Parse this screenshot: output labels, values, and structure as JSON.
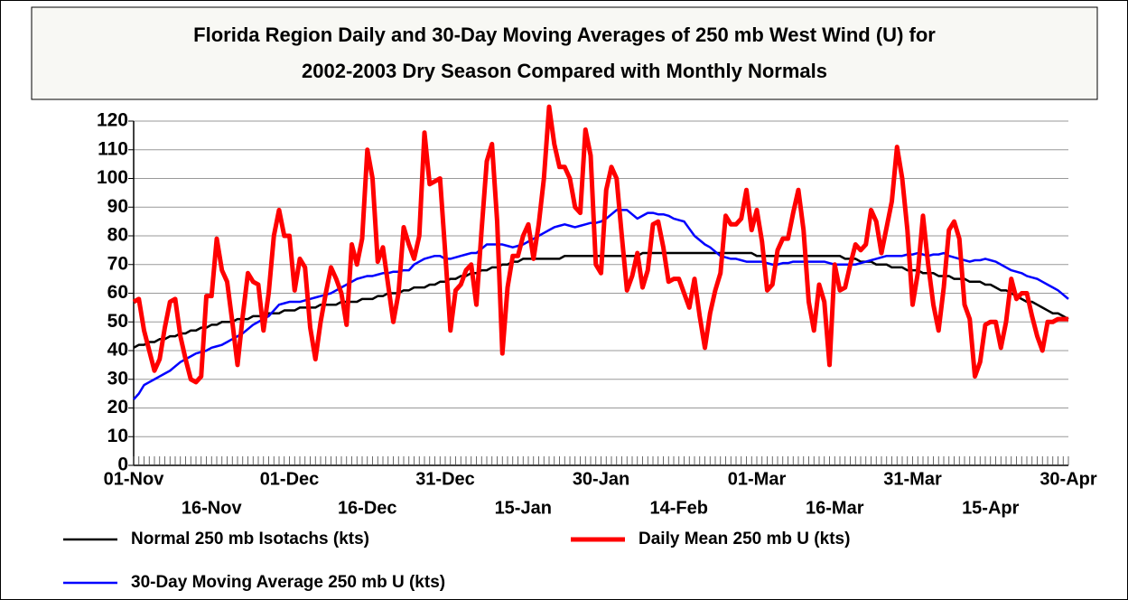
{
  "chart_data": {
    "type": "line",
    "title": "Florida Region Daily and 30-Day Moving Averages of 250 mb West Wind (U)  for 2002-2003 Dry Season Compared with Monthly Normals",
    "title_lines": [
      "Florida Region Daily and 30-Day Moving Averages of 250 mb West Wind (U)  for",
      "2002-2003 Dry Season Compared with Monthly Normals"
    ],
    "categories": [
      "01-Nov",
      null,
      null,
      null,
      null,
      null,
      null,
      null,
      null,
      null,
      null,
      null,
      null,
      null,
      null,
      "16-Nov",
      null,
      null,
      null,
      null,
      null,
      null,
      null,
      null,
      null,
      null,
      null,
      null,
      null,
      null,
      "01-Dec",
      null,
      null,
      null,
      null,
      null,
      null,
      null,
      null,
      null,
      null,
      null,
      null,
      null,
      null,
      "16-Dec",
      null,
      null,
      null,
      null,
      null,
      null,
      null,
      null,
      null,
      null,
      null,
      null,
      null,
      null,
      "31-Dec",
      null,
      null,
      null,
      null,
      null,
      null,
      null,
      null,
      null,
      null,
      null,
      null,
      null,
      null,
      "15-Jan",
      null,
      null,
      null,
      null,
      null,
      null,
      null,
      null,
      null,
      null,
      null,
      null,
      null,
      null,
      "30-Jan",
      null,
      null,
      null,
      null,
      null,
      null,
      null,
      null,
      null,
      null,
      null,
      null,
      null,
      null,
      "14-Feb",
      null,
      null,
      null,
      null,
      null,
      null,
      null,
      null,
      null,
      null,
      null,
      null,
      null,
      null,
      "01-Mar",
      null,
      null,
      null,
      null,
      null,
      null,
      null,
      null,
      null,
      null,
      null,
      null,
      null,
      null,
      "16-Mar",
      null,
      null,
      null,
      null,
      null,
      null,
      null,
      null,
      null,
      null,
      null,
      null,
      null,
      null,
      "31-Mar",
      null,
      null,
      null,
      null,
      null,
      null,
      null,
      null,
      null,
      null,
      null,
      null,
      null,
      null,
      "15-Apr",
      null,
      null,
      null,
      null,
      null,
      null,
      null,
      null,
      null,
      null,
      null,
      null,
      null,
      null,
      "30-Apr"
    ],
    "series": [
      {
        "name": "Normal 250 mb Isotachs (kts)",
        "color": "#000000",
        "values": [
          41,
          42,
          42,
          43,
          43,
          44,
          44,
          45,
          45,
          46,
          46,
          47,
          47,
          48,
          48,
          49,
          49,
          50,
          50,
          50,
          51,
          51,
          51,
          52,
          52,
          52,
          53,
          53,
          53,
          54,
          54,
          54,
          55,
          55,
          55,
          55,
          56,
          56,
          56,
          56,
          57,
          57,
          57,
          57,
          58,
          58,
          58,
          59,
          59,
          60,
          60,
          60,
          61,
          61,
          62,
          62,
          62,
          63,
          63,
          64,
          64,
          65,
          65,
          66,
          66,
          67,
          67,
          68,
          68,
          69,
          69,
          70,
          70,
          71,
          71,
          72,
          72,
          72,
          72,
          72,
          72,
          72,
          72,
          73,
          73,
          73,
          73,
          73,
          73,
          73,
          73,
          73,
          73,
          73,
          73,
          73,
          73,
          73,
          74,
          74,
          74,
          74,
          74,
          74,
          74,
          74,
          74,
          74,
          74,
          74,
          74,
          74,
          74,
          74,
          74,
          74,
          74,
          74,
          74,
          74,
          73,
          73,
          73,
          73,
          73,
          73,
          73,
          73,
          73,
          73,
          73,
          73,
          73,
          73,
          73,
          73,
          73,
          72,
          72,
          72,
          71,
          71,
          71,
          70,
          70,
          70,
          69,
          69,
          69,
          68,
          68,
          68,
          67,
          67,
          67,
          66,
          66,
          66,
          65,
          65,
          65,
          64,
          64,
          64,
          63,
          63,
          62,
          61,
          61,
          60,
          59,
          58,
          57,
          57,
          56,
          55,
          54,
          53,
          53,
          52,
          51
        ]
      },
      {
        "name": "Daily Mean 250 mb U (kts)",
        "color": "#ff0000",
        "values": [
          57,
          58,
          47,
          40,
          33,
          37,
          48,
          57,
          58,
          45,
          37,
          30,
          29,
          31,
          59,
          59,
          79,
          68,
          64,
          50,
          35,
          52,
          67,
          64,
          63,
          47,
          60,
          80,
          89,
          80,
          80,
          61,
          72,
          69,
          48,
          37,
          50,
          60,
          69,
          65,
          60,
          49,
          77,
          70,
          79,
          110,
          100,
          71,
          76,
          63,
          50,
          60,
          83,
          77,
          72,
          80,
          116,
          98,
          99,
          100,
          74,
          47,
          61,
          63,
          68,
          70,
          56,
          82,
          106,
          112,
          85,
          39,
          62,
          73,
          73,
          80,
          84,
          72,
          84,
          100,
          125,
          112,
          104,
          104,
          100,
          90,
          88,
          117,
          108,
          70,
          67,
          96,
          104,
          100,
          80,
          61,
          66,
          74,
          62,
          68,
          84,
          85,
          76,
          64,
          65,
          65,
          60,
          55,
          65,
          52,
          41,
          53,
          61,
          67,
          87,
          84,
          84,
          86,
          96,
          82,
          89,
          78,
          61,
          63,
          75,
          79,
          79,
          88,
          96,
          82,
          57,
          47,
          63,
          57,
          35,
          70,
          61,
          62,
          70,
          77,
          75,
          77,
          89,
          85,
          74,
          83,
          92,
          111,
          100,
          82,
          56,
          67,
          87,
          70,
          56,
          47,
          62,
          82,
          85,
          79,
          56,
          51,
          31,
          36,
          49,
          50,
          50,
          41,
          50,
          65,
          58,
          60,
          60,
          52,
          45,
          40,
          50,
          50,
          51,
          51,
          51
        ]
      },
      {
        "name": "30-Day Moving Average 250 mb U (kts)",
        "color": "#0000ff",
        "values": [
          23,
          25,
          28,
          29,
          30,
          31,
          32,
          33,
          34.5,
          36,
          37,
          38,
          39,
          39.5,
          40,
          41,
          41.5,
          42,
          43,
          44,
          45,
          46,
          47.5,
          49,
          50,
          51,
          52,
          54,
          56,
          56.5,
          57,
          57,
          57,
          57.5,
          58,
          58.5,
          59,
          59.5,
          60,
          61,
          62,
          63,
          64,
          65,
          65.5,
          66,
          66,
          66.5,
          67,
          67,
          67.5,
          67.5,
          68,
          68,
          70,
          71,
          72,
          72.5,
          73,
          73,
          72,
          72,
          72.5,
          73,
          73.5,
          74,
          74,
          75.5,
          77,
          77,
          77,
          77,
          76.5,
          76,
          76.5,
          77,
          78,
          79,
          80,
          81,
          82,
          83,
          83.5,
          84,
          83.5,
          83,
          83.5,
          84,
          84.5,
          84.5,
          85,
          86,
          87.5,
          89,
          89,
          89,
          87.5,
          86,
          87,
          88,
          88,
          87.5,
          87.5,
          87,
          86,
          85.5,
          85,
          82.5,
          80,
          78.5,
          77,
          76,
          74.5,
          73,
          72.5,
          72,
          72,
          71.5,
          71,
          71,
          71,
          71,
          70.5,
          70,
          70,
          70.5,
          70.5,
          71,
          71,
          71,
          71,
          71,
          71,
          71,
          70.5,
          70,
          70,
          70,
          70,
          70,
          70.5,
          71,
          71.5,
          72,
          72.5,
          73,
          73,
          73,
          73,
          73.5,
          73.5,
          74,
          73.5,
          73,
          73.5,
          73.5,
          74,
          73,
          72.5,
          72,
          71.5,
          71,
          71.5,
          71.5,
          72,
          71.5,
          71,
          70,
          69,
          68,
          67.5,
          67,
          66,
          65.5,
          65,
          64,
          63,
          62,
          61,
          59.5,
          58
        ]
      }
    ],
    "ylim": [
      0,
      120
    ],
    "yticks": [
      0,
      10,
      20,
      30,
      40,
      50,
      60,
      70,
      80,
      90,
      100,
      110,
      120
    ],
    "grid": true
  }
}
